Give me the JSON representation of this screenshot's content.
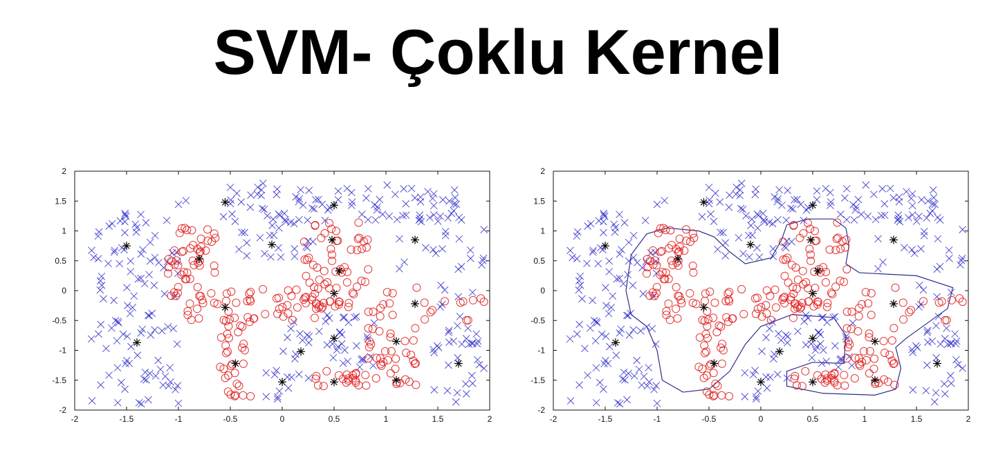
{
  "slide": {
    "title": "SVM- Çoklu Kernel"
  },
  "colors": {
    "class_a": "#3333cc",
    "class_b": "#e02020",
    "support_vector": "#000000",
    "boundary": "#2d2d8a"
  },
  "chart_data": [
    {
      "type": "scatter",
      "title": "",
      "xlabel": "",
      "ylabel": "",
      "xlim": [
        -2,
        2
      ],
      "ylim": [
        -2,
        2
      ],
      "xticks": [
        "-2",
        "-1.5",
        "-1",
        "-0.5",
        "0",
        "0.5",
        "1",
        "1.5",
        "2"
      ],
      "yticks": [
        "2",
        "1.5",
        "1",
        "0.5",
        "0",
        "-0.5",
        "-1",
        "-1.5",
        "-2"
      ],
      "grid": false,
      "series": [
        {
          "marker": "x",
          "color": "#3333cc",
          "regions": [
            {
              "x": [
                -1.85,
                -1.0
              ],
              "y": [
                -1.9,
                1.4
              ],
              "n": 110
            },
            {
              "x": [
                -1.0,
                1.8
              ],
              "y": [
                1.15,
                1.8
              ],
              "n": 95
            },
            {
              "x": [
                -0.6,
                0.3
              ],
              "y": [
                0.55,
                1.15
              ],
              "n": 22
            },
            {
              "x": [
                1.1,
                1.95
              ],
              "y": [
                0.3,
                1.2
              ],
              "n": 18
            },
            {
              "x": [
                1.45,
                1.95
              ],
              "y": [
                -1.9,
                -0.6
              ],
              "n": 30
            },
            {
              "x": [
                0.0,
                0.9
              ],
              "y": [
                -1.3,
                -0.4
              ],
              "n": 42
            },
            {
              "x": [
                -0.2,
                0.3
              ],
              "y": [
                -1.85,
                -1.3
              ],
              "n": 12
            },
            {
              "x": [
                1.3,
                1.9
              ],
              "y": [
                -0.6,
                0.1
              ],
              "n": 8
            }
          ]
        },
        {
          "marker": "o",
          "color": "#e02020",
          "regions": [
            {
              "x": [
                -1.1,
                -0.6
              ],
              "y": [
                -0.5,
                1.05
              ],
              "n": 60
            },
            {
              "x": [
                -0.6,
                -0.3
              ],
              "y": [
                -1.8,
                0.0
              ],
              "n": 45
            },
            {
              "x": [
                -0.3,
                0.4
              ],
              "y": [
                -0.5,
                0.05
              ],
              "n": 25
            },
            {
              "x": [
                0.2,
                0.85
              ],
              "y": [
                -0.3,
                1.15
              ],
              "n": 65
            },
            {
              "x": [
                0.8,
                1.3
              ],
              "y": [
                -1.6,
                0.1
              ],
              "n": 45
            },
            {
              "x": [
                0.3,
                0.85
              ],
              "y": [
                -1.6,
                -1.35
              ],
              "n": 20
            },
            {
              "x": [
                1.3,
                1.95
              ],
              "y": [
                -0.5,
                -0.1
              ],
              "n": 12
            }
          ]
        },
        {
          "marker": "*",
          "color": "#000000",
          "name": "",
          "points": [
            [
              -1.5,
              0.75
            ],
            [
              -1.4,
              -0.87
            ],
            [
              -0.55,
              1.48
            ],
            [
              -0.8,
              0.53
            ],
            [
              -0.55,
              -0.28
            ],
            [
              -0.45,
              -1.22
            ],
            [
              -0.1,
              0.77
            ],
            [
              0.0,
              -1.53
            ],
            [
              0.18,
              -1.02
            ],
            [
              0.5,
              1.43
            ],
            [
              0.48,
              0.85
            ],
            [
              0.55,
              0.33
            ],
            [
              0.5,
              -0.05
            ],
            [
              0.5,
              -0.8
            ],
            [
              0.5,
              -1.53
            ],
            [
              1.28,
              0.85
            ],
            [
              1.28,
              -0.22
            ],
            [
              1.1,
              -0.85
            ],
            [
              1.1,
              -1.5
            ],
            [
              1.7,
              -1.22
            ]
          ]
        }
      ],
      "decision_boundary": false
    },
    {
      "type": "scatter",
      "title": "",
      "xlabel": "",
      "ylabel": "",
      "xlim": [
        -2,
        2
      ],
      "ylim": [
        -2,
        2
      ],
      "xticks": [
        "-2",
        "-1.5",
        "-1",
        "-0.5",
        "0",
        "0.5",
        "1",
        "1.5",
        "2"
      ],
      "yticks": [
        "2",
        "1.5",
        "1",
        "0.5",
        "0",
        "-0.5",
        "-1",
        "-1.5",
        "-2"
      ],
      "grid": false,
      "series": "same as left plot",
      "decision_boundary": {
        "outer": [
          [
            -1.25,
            0.6
          ],
          [
            -1.1,
            0.95
          ],
          [
            -0.9,
            1.05
          ],
          [
            -0.6,
            1.0
          ],
          [
            -0.45,
            0.9
          ],
          [
            -0.3,
            0.65
          ],
          [
            -0.15,
            0.45
          ],
          [
            0.1,
            0.55
          ],
          [
            0.2,
            0.85
          ],
          [
            0.25,
            1.1
          ],
          [
            0.45,
            1.2
          ],
          [
            0.7,
            1.2
          ],
          [
            0.82,
            1.05
          ],
          [
            0.85,
            0.75
          ],
          [
            0.82,
            0.45
          ],
          [
            0.95,
            0.3
          ],
          [
            1.5,
            0.25
          ],
          [
            1.85,
            0.05
          ],
          [
            1.8,
            -0.3
          ],
          [
            1.6,
            -0.55
          ],
          [
            1.4,
            -0.8
          ],
          [
            1.3,
            -0.95
          ],
          [
            1.35,
            -1.3
          ],
          [
            1.3,
            -1.65
          ],
          [
            1.1,
            -1.75
          ],
          [
            0.6,
            -1.72
          ],
          [
            0.25,
            -1.6
          ],
          [
            0.25,
            -1.35
          ],
          [
            0.5,
            -1.2
          ],
          [
            0.8,
            -1.22
          ],
          [
            0.82,
            -0.75
          ],
          [
            0.7,
            -0.45
          ],
          [
            0.3,
            -0.4
          ],
          [
            0.0,
            -0.6
          ],
          [
            -0.15,
            -0.9
          ],
          [
            -0.3,
            -1.35
          ],
          [
            -0.5,
            -1.65
          ],
          [
            -0.75,
            -1.7
          ],
          [
            -0.95,
            -1.5
          ],
          [
            -1.0,
            -1.0
          ],
          [
            -1.1,
            -0.6
          ],
          [
            -1.25,
            -0.4
          ],
          [
            -1.3,
            0.0
          ]
        ]
      }
    }
  ]
}
